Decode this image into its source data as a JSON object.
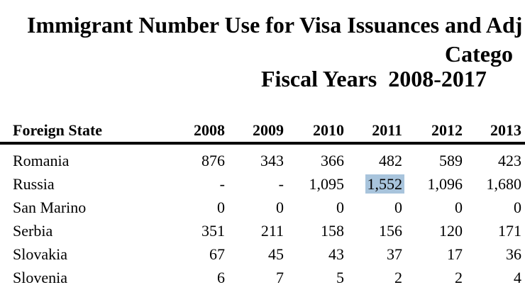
{
  "title": {
    "line1": "Immigrant Number Use for Visa Issuances and Adj",
    "line2": "Catego",
    "line3": "Fiscal Years  2008-2017"
  },
  "table": {
    "first_column_header": "Foreign State",
    "year_headers": [
      "2008",
      "2009",
      "2010",
      "2011",
      "2012",
      "2013"
    ],
    "rows": [
      {
        "state": "Romania",
        "values": [
          "876",
          "343",
          "366",
          "482",
          "589",
          "423"
        ]
      },
      {
        "state": "Russia",
        "values": [
          "-",
          "-",
          "1,095",
          "1,552",
          "1,096",
          "1,680"
        ],
        "highlight_col": 3,
        "highlighted_value": "1,552"
      },
      {
        "state": "San Marino",
        "values": [
          "0",
          "0",
          "0",
          "0",
          "0",
          "0"
        ]
      },
      {
        "state": "Serbia",
        "values": [
          "351",
          "211",
          "158",
          "156",
          "120",
          "171"
        ]
      },
      {
        "state": "Slovakia",
        "values": [
          "67",
          "45",
          "43",
          "37",
          "17",
          "36"
        ]
      },
      {
        "state": "Slovenia",
        "values": [
          "6",
          "7",
          "5",
          "2",
          "2",
          "4"
        ]
      }
    ]
  },
  "colors": {
    "background": "#ffffff",
    "text": "#000000",
    "rule": "#000000",
    "highlight": "#a8c4dc"
  }
}
